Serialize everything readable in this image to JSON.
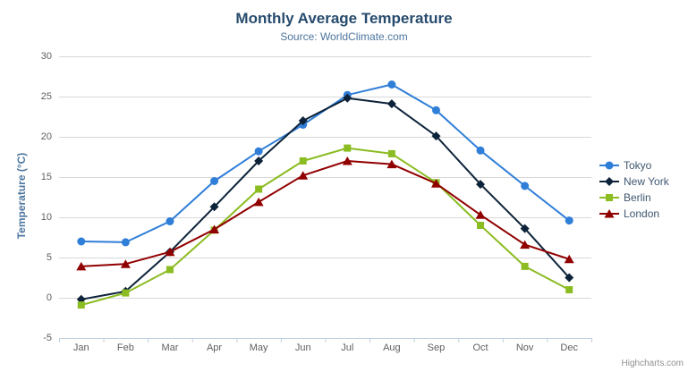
{
  "header": {
    "title": "Monthly Average Temperature",
    "subtitle": "Source: WorldClimate.com"
  },
  "credits": "Highcharts.com",
  "export_menu_icon": "hamburger-icon",
  "colors": {
    "title": "#274b6d",
    "subtitle": "#4d759e",
    "axis_title": "#4d759e",
    "tick_label": "#606060",
    "legend_text": "#3E576F",
    "grid_line": "#d8d8d8",
    "axis_line": "#c0d0e0",
    "background": "#ffffff"
  },
  "chart_data": {
    "type": "line",
    "title": "Monthly Average Temperature",
    "subtitle": "Source: WorldClimate.com",
    "categories": [
      "Jan",
      "Feb",
      "Mar",
      "Apr",
      "May",
      "Jun",
      "Jul",
      "Aug",
      "Sep",
      "Oct",
      "Nov",
      "Dec"
    ],
    "series": [
      {
        "name": "Tokyo",
        "color": "#2f7ed8",
        "marker": "circle",
        "values": [
          7.0,
          6.9,
          9.5,
          14.5,
          18.2,
          21.5,
          25.2,
          26.5,
          23.3,
          18.3,
          13.9,
          9.6
        ]
      },
      {
        "name": "New York",
        "color": "#0d233a",
        "marker": "diamond",
        "values": [
          -0.2,
          0.8,
          5.7,
          11.3,
          17.0,
          22.0,
          24.8,
          24.1,
          20.1,
          14.1,
          8.6,
          2.5
        ]
      },
      {
        "name": "Berlin",
        "color": "#8bbc21",
        "marker": "square",
        "values": [
          -0.9,
          0.6,
          3.5,
          8.4,
          13.5,
          17.0,
          18.6,
          17.9,
          14.3,
          9.0,
          3.9,
          1.0
        ]
      },
      {
        "name": "London",
        "color": "#910000",
        "marker": "triangle",
        "values": [
          3.9,
          4.2,
          5.7,
          8.5,
          11.9,
          15.2,
          17.0,
          16.6,
          14.2,
          10.3,
          6.6,
          4.8
        ]
      }
    ],
    "xlabel": "",
    "ylabel": "Temperature (°C)",
    "ylim": [
      -5,
      30
    ],
    "ytick_step": 5,
    "yticks": [
      30,
      25,
      20,
      15,
      10,
      5,
      0,
      -5
    ],
    "grid": true,
    "legend_position": "right"
  }
}
